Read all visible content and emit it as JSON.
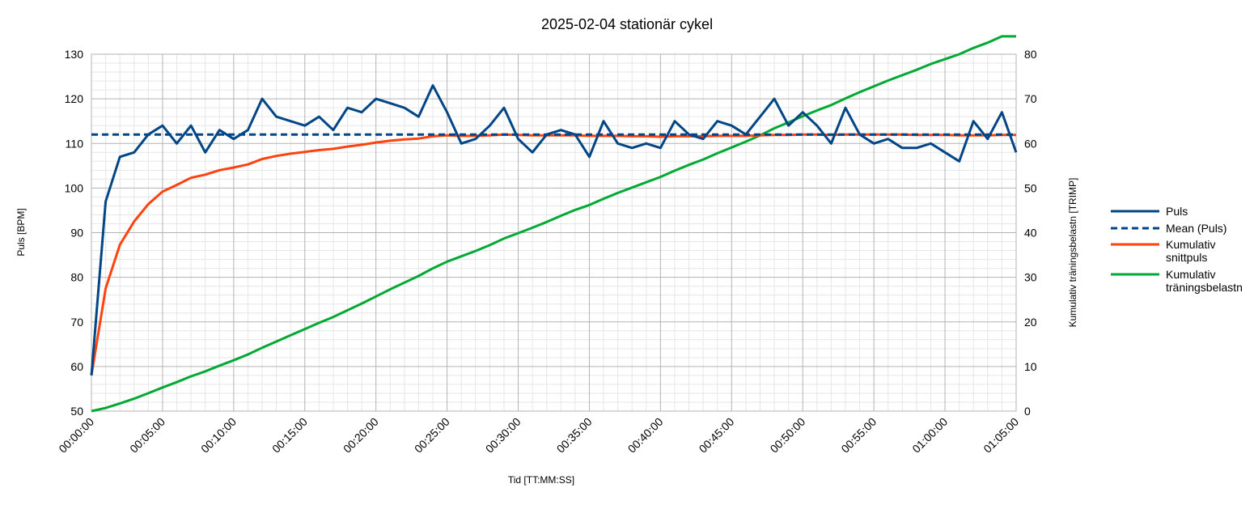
{
  "chart_data": {
    "type": "line",
    "title": "2025-02-04 stationär cykel",
    "xlabel": "Tid [TT:MM:SS]",
    "ylabel": "Puls [BPM]",
    "y2label": "Kumulativ träningsbelastn [TRIMP]",
    "x_unit": "minutes",
    "xlim": [
      0,
      65
    ],
    "ylim": [
      50,
      130
    ],
    "y2lim": [
      0,
      80
    ],
    "grid": true,
    "legend_position": "right",
    "x_ticks": [
      "00:00:00",
      "00:05:00",
      "00:10:00",
      "00:15:00",
      "00:20:00",
      "00:25:00",
      "00:30:00",
      "00:35:00",
      "00:40:00",
      "00:45:00",
      "00:50:00",
      "00:55:00",
      "01:00:00",
      "01:05:00"
    ],
    "y_ticks": [
      "50",
      "60",
      "70",
      "80",
      "90",
      "100",
      "110",
      "120",
      "130"
    ],
    "y2_ticks": [
      "0",
      "10",
      "20",
      "30",
      "40",
      "50",
      "60",
      "70",
      "80"
    ],
    "x": [
      0,
      1,
      2,
      3,
      4,
      5,
      6,
      7,
      8,
      9,
      10,
      11,
      12,
      13,
      14,
      15,
      16,
      17,
      18,
      19,
      20,
      21,
      22,
      23,
      24,
      25,
      26,
      27,
      28,
      29,
      30,
      31,
      32,
      33,
      34,
      35,
      36,
      37,
      38,
      39,
      40,
      41,
      42,
      43,
      44,
      45,
      46,
      47,
      48,
      49,
      50,
      51,
      52,
      53,
      54,
      55,
      56,
      57,
      58,
      59,
      60,
      61,
      62,
      63,
      64,
      65
    ],
    "series": [
      {
        "name": "Puls",
        "axis": "left",
        "color": "#004586",
        "dash": "solid",
        "values": [
          58,
          97,
          107,
          108,
          112,
          114,
          110,
          114,
          108,
          113,
          111,
          113,
          120,
          116,
          115,
          114,
          116,
          113,
          118,
          117,
          120,
          119,
          118,
          116,
          123,
          117,
          110,
          111,
          114,
          118,
          111,
          108,
          112,
          113,
          112,
          107,
          115,
          110,
          109,
          110,
          109,
          115,
          112,
          111,
          115,
          114,
          112,
          116,
          120,
          114,
          117,
          114,
          110,
          118,
          112,
          110,
          111,
          109,
          109,
          110,
          108,
          106,
          115,
          111,
          117,
          108
        ]
      },
      {
        "name": "Mean (Puls)",
        "axis": "left",
        "color": "#004586",
        "dash": "dashed",
        "values": [
          112,
          112,
          112,
          112,
          112,
          112,
          112,
          112,
          112,
          112,
          112,
          112,
          112,
          112,
          112,
          112,
          112,
          112,
          112,
          112,
          112,
          112,
          112,
          112,
          112,
          112,
          112,
          112,
          112,
          112,
          112,
          112,
          112,
          112,
          112,
          112,
          112,
          112,
          112,
          112,
          112,
          112,
          112,
          112,
          112,
          112,
          112,
          112,
          112,
          112,
          112,
          112,
          112,
          112,
          112,
          112,
          112,
          112,
          112,
          112,
          112,
          112,
          112,
          112,
          112,
          112
        ]
      },
      {
        "name": "Kumulativ snittpuls",
        "legend_lines": [
          "Kumulativ",
          "snittpuls"
        ],
        "axis": "left",
        "color": "#ff420e",
        "dash": "solid",
        "values": [
          58,
          77.5,
          87.3,
          92.5,
          96.4,
          99.2,
          100.7,
          102.3,
          103.0,
          104.0,
          104.6,
          105.3,
          106.5,
          107.2,
          107.7,
          108.1,
          108.5,
          108.8,
          109.3,
          109.7,
          110.2,
          110.6,
          110.9,
          111.1,
          111.6,
          111.8,
          111.7,
          111.7,
          111.8,
          112.0,
          111.9,
          111.8,
          111.8,
          111.8,
          111.8,
          111.7,
          111.7,
          111.7,
          111.6,
          111.6,
          111.5,
          111.6,
          111.6,
          111.6,
          111.7,
          111.7,
          111.7,
          111.8,
          111.9,
          111.9,
          112.0,
          112.0,
          111.9,
          112.0,
          112.0,
          112.0,
          112.0,
          112.0,
          111.9,
          111.9,
          111.9,
          111.8,
          111.8,
          111.8,
          111.9,
          111.9
        ]
      },
      {
        "name": "Kumulativ träningsbelastn",
        "legend_lines": [
          "Kumulativ",
          "träningsbelastn"
        ],
        "axis": "right",
        "color": "#00a933",
        "dash": "solid",
        "values": [
          0,
          0.7,
          1.7,
          2.8,
          4.0,
          5.3,
          6.5,
          7.8,
          8.9,
          10.2,
          11.4,
          12.7,
          14.2,
          15.6,
          17.0,
          18.4,
          19.8,
          21.1,
          22.6,
          24.1,
          25.7,
          27.3,
          28.8,
          30.3,
          32.0,
          33.5,
          34.7,
          35.9,
          37.2,
          38.7,
          39.9,
          41.1,
          42.4,
          43.8,
          45.1,
          46.2,
          47.6,
          48.9,
          50.1,
          51.3,
          52.5,
          53.9,
          55.2,
          56.4,
          57.8,
          59.1,
          60.4,
          61.8,
          63.4,
          64.7,
          66.1,
          67.4,
          68.6,
          70.1,
          71.5,
          72.8,
          74.1,
          75.3,
          76.5,
          77.8,
          78.9,
          80.0,
          81.4,
          82.6,
          84.0,
          84.0
        ]
      }
    ]
  }
}
